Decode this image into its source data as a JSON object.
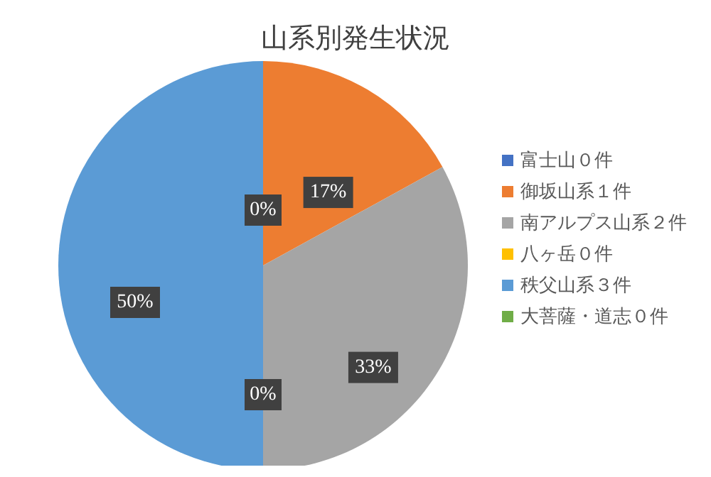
{
  "chart_data": {
    "type": "pie",
    "title": "山系別発生状況",
    "categories": [
      "富士山０件",
      "御坂山系１件",
      "南アルプス山系２件",
      "八ヶ岳０件",
      "秩父山系３件",
      "大菩薩・道志０件"
    ],
    "values": [
      0,
      17,
      33,
      0,
      50,
      0
    ],
    "colors": [
      "#4472c4",
      "#ed7d31",
      "#a5a5a5",
      "#ffc000",
      "#5b9bd5",
      "#70ad47"
    ],
    "value_labels": [
      "0%",
      "17%",
      "33%",
      "0%",
      "50%",
      null
    ],
    "legend": "right"
  }
}
